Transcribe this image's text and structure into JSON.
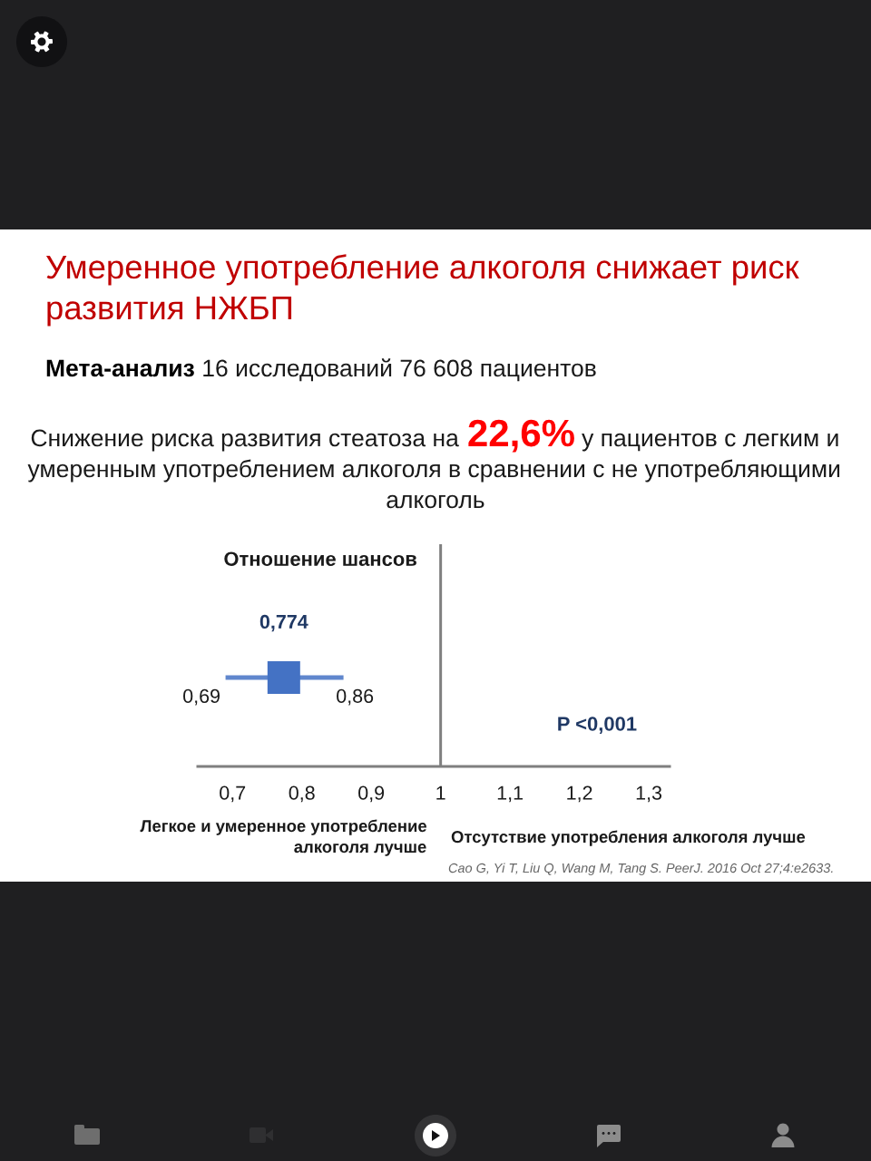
{
  "chart_data": {
    "type": "scatter",
    "orientation": "horizontal",
    "title": "Умеренное употребление алкоголя снижает риск развития НЖБП",
    "subtitle": "Мета-анализ 16 исследований 76 608 пациентов",
    "categories": [
      null
    ],
    "values": [
      0.774
    ],
    "errors": [
      [
        0.69,
        0.86
      ]
    ],
    "value_labels": [
      "0,774"
    ],
    "color": "#4472c4",
    "marker": "square",
    "xlim": [
      0.65,
      1.33
    ],
    "xticks": [
      {
        "value": 0.7,
        "label": "0,7"
      },
      {
        "value": 0.8,
        "label": "0,8"
      },
      {
        "value": 0.9,
        "label": "0,9"
      },
      1,
      {
        "value": 1.1,
        "label": "1,1"
      },
      {
        "value": 1.2,
        "label": "1,2"
      },
      {
        "value": 1.3,
        "label": "1,3"
      }
    ],
    "tick_labels": "x",
    "ref_lines": [
      {
        "axis": "x",
        "value": 1,
        "color": "#7f7f7f"
      }
    ],
    "annotations": [
      "Снижение риска развития стеатоза на",
      "22,6%",
      "у пациентов с легким и",
      "умеренным употреблением алкоголя в сравнении с не употребляющими алкоголь",
      "Отношение шансов",
      "P <0,001",
      "Легкое и умеренное употребление алкоголя лучше",
      "Отсутствие употребления алкоголя лучше",
      "Cao G, Yi T, Liu Q, Wang M, Tang S. PeerJ. 2016 Oct 27;4:e2633.",
      "0,69",
      "0,86"
    ]
  }
}
